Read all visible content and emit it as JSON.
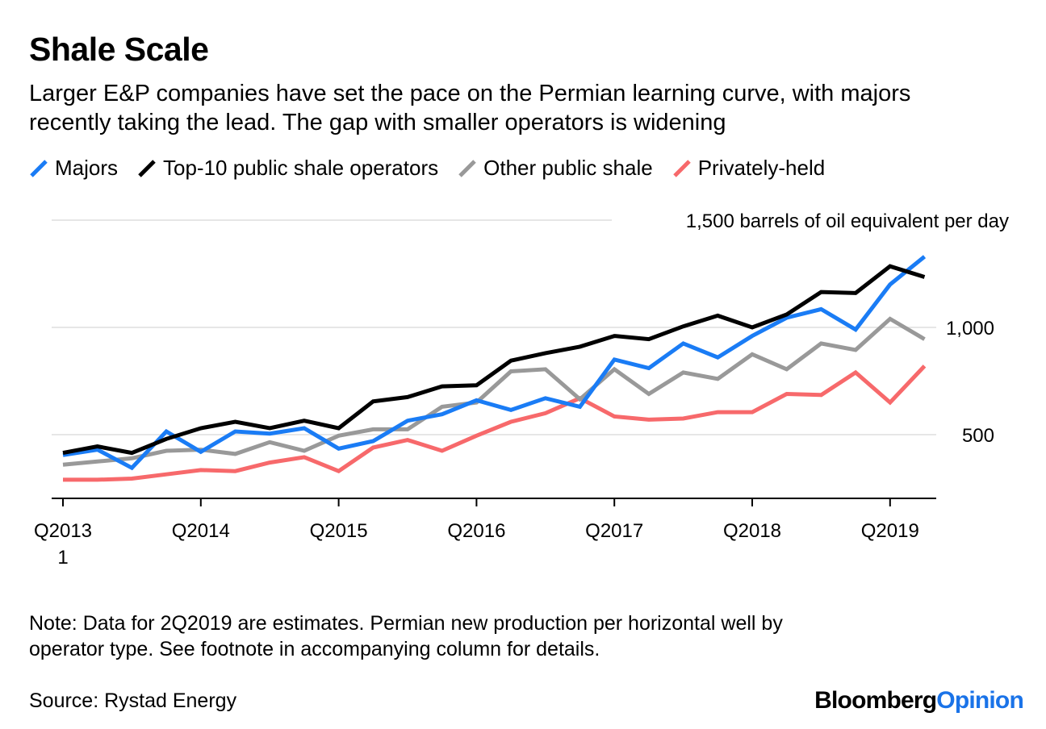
{
  "header": {
    "title": "Shale Scale",
    "subtitle": "Larger E&P companies have set the pace on the Permian learning curve, with majors recently taking the lead. The gap with smaller operators is widening"
  },
  "footer": {
    "note": "Note: Data for 2Q2019 are estimates. Permian new production per horizontal well by operator type. See footnote in accompanying column for details.",
    "source": "Source: Rystad Energy",
    "brand_part1": "Bloomberg",
    "brand_part2": "Opinion"
  },
  "colors": {
    "majors": "#1a7cf5",
    "top10": "#000000",
    "other": "#999999",
    "private": "#f7696b",
    "grid": "#e6e6e6",
    "brand_accent": "#1a73e8"
  },
  "chart_data": {
    "type": "line",
    "ylabel": "barrels of oil equivalent per day",
    "ylim": [
      200,
      1550
    ],
    "y_ticks": [
      500,
      1000,
      1500
    ],
    "y_tick_labels": [
      "500",
      "1,000",
      "1,500 barrels of oil equivalent per day"
    ],
    "x_tick_labels": [
      "Q2013",
      "Q2014",
      "Q2015",
      "Q2016",
      "Q2017",
      "Q2018",
      "Q2019"
    ],
    "x_tick_sublabel": "1",
    "x_tick_positions": [
      0,
      4,
      8,
      12,
      16,
      20,
      24
    ],
    "grid": true,
    "legend_position": "top-left",
    "x": [
      "1Q2013",
      "2Q2013",
      "3Q2013",
      "4Q2013",
      "1Q2014",
      "2Q2014",
      "3Q2014",
      "4Q2014",
      "1Q2015",
      "2Q2015",
      "3Q2015",
      "4Q2015",
      "1Q2016",
      "2Q2016",
      "3Q2016",
      "4Q2016",
      "1Q2017",
      "2Q2017",
      "3Q2017",
      "4Q2017",
      "1Q2018",
      "2Q2018",
      "3Q2018",
      "4Q2018",
      "1Q2019",
      "2Q2019"
    ],
    "series": [
      {
        "name": "Privately-held",
        "color_key": "private",
        "values": [
          290,
          290,
          295,
          315,
          335,
          330,
          370,
          395,
          330,
          440,
          475,
          425,
          495,
          560,
          600,
          670,
          585,
          570,
          575,
          605,
          605,
          690,
          685,
          790,
          650,
          820
        ]
      },
      {
        "name": "Other public shale",
        "color_key": "other",
        "values": [
          360,
          375,
          390,
          425,
          430,
          410,
          465,
          425,
          495,
          525,
          525,
          630,
          650,
          795,
          805,
          665,
          805,
          690,
          790,
          760,
          875,
          805,
          925,
          895,
          1040,
          945
        ]
      },
      {
        "name": "Majors",
        "color_key": "majors",
        "values": [
          405,
          430,
          345,
          515,
          420,
          515,
          505,
          530,
          435,
          470,
          565,
          595,
          660,
          615,
          670,
          630,
          850,
          810,
          925,
          860,
          960,
          1045,
          1085,
          990,
          1200,
          1330
        ]
      },
      {
        "name": "Top-10 public shale operators",
        "color_key": "top10",
        "values": [
          415,
          445,
          415,
          480,
          530,
          560,
          530,
          565,
          530,
          655,
          675,
          725,
          730,
          845,
          880,
          910,
          960,
          945,
          1005,
          1055,
          1000,
          1060,
          1165,
          1160,
          1285,
          1235
        ]
      }
    ]
  }
}
